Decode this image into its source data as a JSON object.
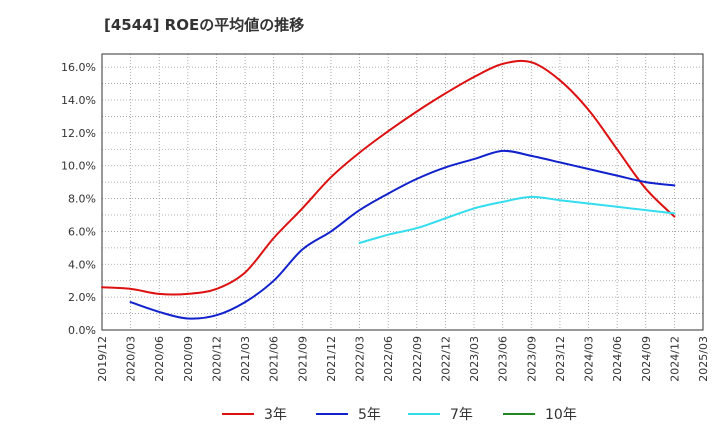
{
  "chart_data": {
    "type": "line",
    "title": "[4544]  ROEの平均値の推移",
    "xlabel": "",
    "ylabel": "",
    "ylim": [
      0,
      16.8
    ],
    "yticks": [
      "0.0%",
      "2.0%",
      "4.0%",
      "6.0%",
      "8.0%",
      "10.0%",
      "12.0%",
      "14.0%",
      "16.0%"
    ],
    "categories": [
      "2019/12",
      "2020/03",
      "2020/06",
      "2020/09",
      "2020/12",
      "2021/03",
      "2021/06",
      "2021/09",
      "2021/12",
      "2022/03",
      "2022/06",
      "2022/09",
      "2022/12",
      "2023/03",
      "2023/06",
      "2023/09",
      "2023/12",
      "2024/03",
      "2024/06",
      "2024/09",
      "2024/12",
      "2025/03"
    ],
    "series": [
      {
        "name": "3年",
        "color": "#dd1111",
        "values": [
          2.6,
          2.5,
          2.2,
          2.2,
          2.5,
          3.5,
          5.6,
          7.4,
          9.3,
          10.8,
          12.1,
          13.3,
          14.4,
          15.4,
          16.2,
          16.3,
          15.2,
          13.4,
          11.0,
          8.6,
          6.9,
          null
        ]
      },
      {
        "name": "5年",
        "color": "#1122cc",
        "values": [
          null,
          1.7,
          1.1,
          0.7,
          0.9,
          1.7,
          3.0,
          4.9,
          6.0,
          7.3,
          8.3,
          9.2,
          9.9,
          10.4,
          10.9,
          10.6,
          10.2,
          9.8,
          9.4,
          9.0,
          8.8,
          null
        ]
      },
      {
        "name": "7年",
        "color": "#33ddee",
        "values": [
          null,
          null,
          null,
          null,
          null,
          null,
          null,
          null,
          null,
          5.3,
          5.8,
          6.2,
          6.8,
          7.4,
          7.8,
          8.1,
          7.9,
          7.7,
          7.5,
          7.3,
          7.1,
          null
        ]
      },
      {
        "name": "10年",
        "color": "#228822",
        "values": [
          null,
          null,
          null,
          null,
          null,
          null,
          null,
          null,
          null,
          null,
          null,
          null,
          null,
          null,
          null,
          null,
          null,
          null,
          null,
          null,
          null,
          null
        ]
      }
    ],
    "grid": true,
    "legend": "bottom"
  }
}
